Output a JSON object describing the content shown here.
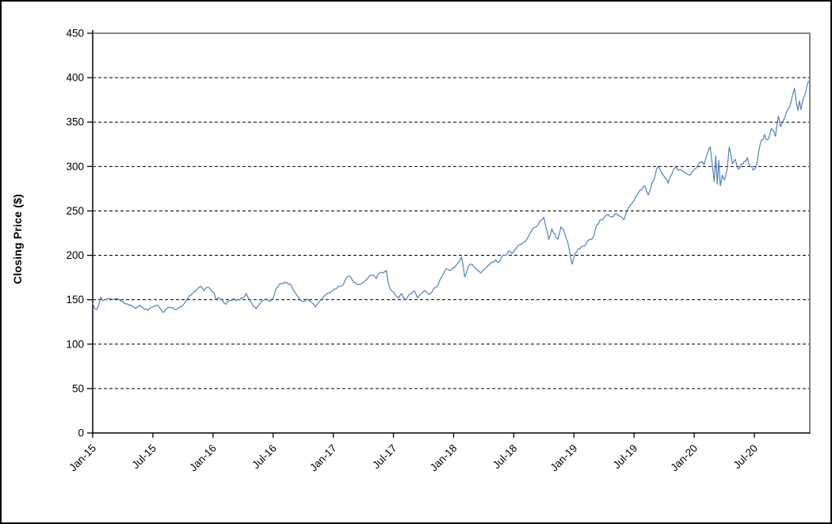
{
  "chart_data": {
    "type": "line",
    "ylabel": "Closing Price ($)",
    "xlabel": "",
    "ylim": [
      0,
      450
    ],
    "yticks": [
      0,
      50,
      100,
      150,
      200,
      250,
      300,
      350,
      400,
      450
    ],
    "xticks": [
      {
        "m": 0,
        "label": "Jan-15"
      },
      {
        "m": 6,
        "label": "Jul-15"
      },
      {
        "m": 12,
        "label": "Jan-16"
      },
      {
        "m": 18,
        "label": "Jul-16"
      },
      {
        "m": 24,
        "label": "Jan-17"
      },
      {
        "m": 30,
        "label": "Jul-17"
      },
      {
        "m": 36,
        "label": "Jan-18"
      },
      {
        "m": 42,
        "label": "Jul-18"
      },
      {
        "m": 48,
        "label": "Jan-19"
      },
      {
        "m": 54,
        "label": "Jul-19"
      },
      {
        "m": 60,
        "label": "Jan-20"
      },
      {
        "m": 66,
        "label": "Jul-20"
      }
    ],
    "grid": "horizontal-dashed",
    "legend": "none",
    "colors": {
      "line": "#4F81BD",
      "axis": "#000000",
      "grid": "#000000",
      "plot_border": "#848484"
    },
    "series": [
      {
        "name": "closing-price",
        "points": [
          [
            0,
            146
          ],
          [
            0.2,
            140
          ],
          [
            0.4,
            139
          ],
          [
            0.6,
            144
          ],
          [
            0.8,
            153
          ],
          [
            1,
            149
          ],
          [
            1.5,
            151
          ],
          [
            2,
            150
          ],
          [
            2.5,
            151
          ],
          [
            3,
            148
          ],
          [
            3.5,
            145
          ],
          [
            4,
            142
          ],
          [
            4.3,
            140
          ],
          [
            4.7,
            144
          ],
          [
            5,
            141
          ],
          [
            5.5,
            138
          ],
          [
            6,
            142
          ],
          [
            6.4,
            144
          ],
          [
            6.8,
            139
          ],
          [
            7.1,
            136
          ],
          [
            7.4,
            140
          ],
          [
            7.8,
            141
          ],
          [
            8.2,
            139
          ],
          [
            8.6,
            141
          ],
          [
            9,
            144
          ],
          [
            9.5,
            152
          ],
          [
            10,
            158
          ],
          [
            10.4,
            162
          ],
          [
            10.8,
            165
          ],
          [
            11.1,
            160
          ],
          [
            11.4,
            164
          ],
          [
            11.8,
            161
          ],
          [
            12.1,
            158
          ],
          [
            12.3,
            150
          ],
          [
            12.6,
            152
          ],
          [
            13,
            148
          ],
          [
            13.3,
            145
          ],
          [
            13.6,
            149
          ],
          [
            14,
            151
          ],
          [
            14.5,
            150
          ],
          [
            15,
            152
          ],
          [
            15.3,
            157
          ],
          [
            15.7,
            149
          ],
          [
            16,
            143
          ],
          [
            16.3,
            140
          ],
          [
            16.7,
            146
          ],
          [
            17,
            149
          ],
          [
            17.3,
            151
          ],
          [
            17.6,
            148
          ],
          [
            18,
            152
          ],
          [
            18.3,
            163
          ],
          [
            18.6,
            167
          ],
          [
            19,
            168
          ],
          [
            19.4,
            169
          ],
          [
            19.8,
            166
          ],
          [
            20.2,
            158
          ],
          [
            20.5,
            153
          ],
          [
            21,
            148
          ],
          [
            21.4,
            151
          ],
          [
            21.8,
            147
          ],
          [
            22.2,
            142
          ],
          [
            22.6,
            148
          ],
          [
            23,
            153
          ],
          [
            23.5,
            158
          ],
          [
            23.9,
            160
          ],
          [
            24.2,
            162
          ],
          [
            24.6,
            165
          ],
          [
            25,
            167
          ],
          [
            25.3,
            175
          ],
          [
            25.6,
            177
          ],
          [
            26,
            170
          ],
          [
            26.4,
            167
          ],
          [
            26.8,
            168
          ],
          [
            27.2,
            172
          ],
          [
            27.6,
            177
          ],
          [
            28,
            178
          ],
          [
            28.3,
            174
          ],
          [
            28.6,
            180
          ],
          [
            29,
            180
          ],
          [
            29.3,
            183
          ],
          [
            29.5,
            168
          ],
          [
            29.8,
            160
          ],
          [
            30.2,
            155
          ],
          [
            30.5,
            152
          ],
          [
            30.8,
            157
          ],
          [
            31.2,
            150
          ],
          [
            31.5,
            155
          ],
          [
            31.8,
            157
          ],
          [
            32.1,
            160
          ],
          [
            32.4,
            152
          ],
          [
            32.8,
            157
          ],
          [
            33.2,
            160
          ],
          [
            33.6,
            156
          ],
          [
            34,
            162
          ],
          [
            34.5,
            168
          ],
          [
            35,
            180
          ],
          [
            35.3,
            185
          ],
          [
            35.6,
            183
          ],
          [
            35.9,
            186
          ],
          [
            36.2,
            188
          ],
          [
            36.5,
            192
          ],
          [
            36.8,
            198
          ],
          [
            37.1,
            176
          ],
          [
            37.4,
            185
          ],
          [
            37.7,
            190
          ],
          [
            38,
            187
          ],
          [
            38.4,
            183
          ],
          [
            38.7,
            180
          ],
          [
            39,
            184
          ],
          [
            39.4,
            188
          ],
          [
            39.8,
            192
          ],
          [
            40.2,
            195
          ],
          [
            40.5,
            192
          ],
          [
            40.8,
            198
          ],
          [
            41.2,
            200
          ],
          [
            41.5,
            205
          ],
          [
            41.8,
            202
          ],
          [
            42.2,
            207
          ],
          [
            42.6,
            212
          ],
          [
            43,
            215
          ],
          [
            43.4,
            220
          ],
          [
            43.8,
            228
          ],
          [
            44.2,
            232
          ],
          [
            44.5,
            236
          ],
          [
            44.8,
            240
          ],
          [
            45,
            243
          ],
          [
            45.2,
            232
          ],
          [
            45.5,
            218
          ],
          [
            45.8,
            230
          ],
          [
            46.1,
            224
          ],
          [
            46.4,
            218
          ],
          [
            46.7,
            232
          ],
          [
            47,
            228
          ],
          [
            47.4,
            214
          ],
          [
            47.8,
            190
          ],
          [
            48.1,
            202
          ],
          [
            48.4,
            207
          ],
          [
            48.8,
            210
          ],
          [
            49.2,
            213
          ],
          [
            49.6,
            218
          ],
          [
            50,
            222
          ],
          [
            50.3,
            235
          ],
          [
            50.7,
            240
          ],
          [
            51,
            242
          ],
          [
            51.4,
            246
          ],
          [
            51.8,
            243
          ],
          [
            52.2,
            247
          ],
          [
            52.6,
            244
          ],
          [
            53,
            240
          ],
          [
            53.3,
            250
          ],
          [
            53.7,
            258
          ],
          [
            54,
            262
          ],
          [
            54.4,
            270
          ],
          [
            54.8,
            274
          ],
          [
            55.1,
            278
          ],
          [
            55.4,
            268
          ],
          [
            55.8,
            282
          ],
          [
            56.1,
            290
          ],
          [
            56.4,
            300
          ],
          [
            56.8,
            292
          ],
          [
            57.1,
            287
          ],
          [
            57.4,
            281
          ],
          [
            57.8,
            292
          ],
          [
            58.2,
            299
          ],
          [
            58.6,
            297
          ],
          [
            59,
            294
          ],
          [
            59.4,
            291
          ],
          [
            59.8,
            294
          ],
          [
            60.2,
            298
          ],
          [
            60.6,
            305
          ],
          [
            61,
            302
          ],
          [
            61.3,
            314
          ],
          [
            61.6,
            322
          ],
          [
            61.8,
            302
          ],
          [
            62,
            283
          ],
          [
            62.15,
            312
          ],
          [
            62.3,
            280
          ],
          [
            62.45,
            307
          ],
          [
            62.6,
            278
          ],
          [
            62.8,
            290
          ],
          [
            63,
            285
          ],
          [
            63.3,
            298
          ],
          [
            63.5,
            322
          ],
          [
            63.8,
            303
          ],
          [
            64.1,
            308
          ],
          [
            64.4,
            297
          ],
          [
            64.7,
            303
          ],
          [
            65,
            306
          ],
          [
            65.3,
            310
          ],
          [
            65.6,
            300
          ],
          [
            66,
            297
          ],
          [
            66.3,
            305
          ],
          [
            66.45,
            318
          ],
          [
            66.6,
            326
          ],
          [
            67,
            336
          ],
          [
            67.3,
            330
          ],
          [
            67.7,
            343
          ],
          [
            68.1,
            334
          ],
          [
            68.4,
            357
          ],
          [
            68.6,
            345
          ],
          [
            68.9,
            352
          ],
          [
            69.2,
            361
          ],
          [
            69.5,
            366
          ],
          [
            69.8,
            380
          ],
          [
            70,
            388
          ],
          [
            70.2,
            372
          ],
          [
            70.35,
            363
          ],
          [
            70.5,
            374
          ],
          [
            70.65,
            364
          ],
          [
            70.9,
            377
          ],
          [
            71.1,
            382
          ],
          [
            71.4,
            396
          ]
        ]
      }
    ],
    "render_hints": {
      "jitter_amplitude": 1.5,
      "jitter_step_months": 0.16
    }
  }
}
